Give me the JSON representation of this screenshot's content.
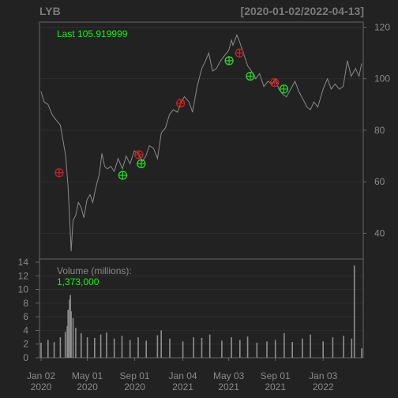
{
  "chart_data": [
    {
      "type": "line",
      "ticker": "LYB",
      "date_range": "[2020-01-02/2022-04-13]",
      "last_label": "Last 105.919999",
      "y_axis": {
        "side": "right",
        "ticks": [
          40,
          60,
          80,
          100,
          120
        ],
        "ylim": [
          30,
          122
        ]
      },
      "x_axis": {
        "range": [
          "2020-01-02",
          "2022-04-13"
        ],
        "ticks": [
          {
            "date": "2020-01-02",
            "line1": "Jan 02",
            "line2": "2020"
          },
          {
            "date": "2020-05-01",
            "line1": "May 01",
            "line2": "2020"
          },
          {
            "date": "2020-09-01",
            "line1": "Sep 01",
            "line2": "2020"
          },
          {
            "date": "2021-01-04",
            "line1": "Jan 04",
            "line2": "2021"
          },
          {
            "date": "2021-05-03",
            "line1": "May 03",
            "line2": "2021"
          },
          {
            "date": "2021-09-01",
            "line1": "Sep 01",
            "line2": "2021"
          },
          {
            "date": "2022-01-03",
            "line1": "Jan 03",
            "line2": "2022"
          }
        ]
      },
      "series": [
        {
          "values": [
            [
              "2020-01-02",
              95
            ],
            [
              "2020-01-10",
              91
            ],
            [
              "2020-01-20",
              90
            ],
            [
              "2020-01-31",
              86
            ],
            [
              "2020-02-10",
              84
            ],
            [
              "2020-02-21",
              82
            ],
            [
              "2020-02-28",
              76
            ],
            [
              "2020-03-06",
              70
            ],
            [
              "2020-03-12",
              58
            ],
            [
              "2020-03-18",
              40
            ],
            [
              "2020-03-20",
              33
            ],
            [
              "2020-03-25",
              45
            ],
            [
              "2020-04-01",
              47
            ],
            [
              "2020-04-08",
              52
            ],
            [
              "2020-04-15",
              50
            ],
            [
              "2020-04-22",
              46
            ],
            [
              "2020-04-30",
              53
            ],
            [
              "2020-05-08",
              55
            ],
            [
              "2020-05-15",
              52
            ],
            [
              "2020-05-22",
              57
            ],
            [
              "2020-06-01",
              63
            ],
            [
              "2020-06-08",
              71
            ],
            [
              "2020-06-15",
              66
            ],
            [
              "2020-06-22",
              65
            ],
            [
              "2020-07-01",
              66
            ],
            [
              "2020-07-10",
              64
            ],
            [
              "2020-07-20",
              69
            ],
            [
              "2020-07-31",
              65
            ],
            [
              "2020-08-10",
              70
            ],
            [
              "2020-08-20",
              67
            ],
            [
              "2020-08-31",
              72
            ],
            [
              "2020-09-10",
              71
            ],
            [
              "2020-09-21",
              68
            ],
            [
              "2020-09-30",
              70
            ],
            [
              "2020-10-09",
              74
            ],
            [
              "2020-10-20",
              73
            ],
            [
              "2020-10-30",
              69
            ],
            [
              "2020-11-09",
              79
            ],
            [
              "2020-11-20",
              81
            ],
            [
              "2020-11-30",
              86
            ],
            [
              "2020-12-10",
              88
            ],
            [
              "2020-12-21",
              87
            ],
            [
              "2020-12-31",
              91
            ],
            [
              "2021-01-08",
              93
            ],
            [
              "2021-01-20",
              91
            ],
            [
              "2021-01-29",
              87
            ],
            [
              "2021-02-10",
              97
            ],
            [
              "2021-02-22",
              104
            ],
            [
              "2021-03-01",
              106
            ],
            [
              "2021-03-12",
              110
            ],
            [
              "2021-03-22",
              103
            ],
            [
              "2021-04-01",
              104
            ],
            [
              "2021-04-12",
              107
            ],
            [
              "2021-04-22",
              109
            ],
            [
              "2021-05-03",
              111
            ],
            [
              "2021-05-10",
              115
            ],
            [
              "2021-05-14",
              113
            ],
            [
              "2021-05-24",
              117
            ],
            [
              "2021-06-01",
              114
            ],
            [
              "2021-06-10",
              110
            ],
            [
              "2021-06-21",
              105
            ],
            [
              "2021-07-01",
              103
            ],
            [
              "2021-07-12",
              100
            ],
            [
              "2021-07-22",
              102
            ],
            [
              "2021-08-02",
              97
            ],
            [
              "2021-08-13",
              99
            ],
            [
              "2021-08-24",
              98
            ],
            [
              "2021-09-01",
              100
            ],
            [
              "2021-09-10",
              96
            ],
            [
              "2021-09-20",
              94
            ],
            [
              "2021-09-30",
              93
            ],
            [
              "2021-10-11",
              96
            ],
            [
              "2021-10-22",
              99
            ],
            [
              "2021-11-01",
              95
            ],
            [
              "2021-11-12",
              92
            ],
            [
              "2021-11-22",
              89
            ],
            [
              "2021-12-01",
              88
            ],
            [
              "2021-12-10",
              91
            ],
            [
              "2021-12-20",
              89
            ],
            [
              "2022-01-03",
              96
            ],
            [
              "2022-01-14",
              100
            ],
            [
              "2022-01-24",
              96
            ],
            [
              "2022-02-03",
              98
            ],
            [
              "2022-02-14",
              96
            ],
            [
              "2022-02-24",
              97
            ],
            [
              "2022-03-07",
              107
            ],
            [
              "2022-03-17",
              101
            ],
            [
              "2022-03-28",
              104
            ],
            [
              "2022-04-06",
              101
            ],
            [
              "2022-04-13",
              105.92
            ]
          ]
        }
      ],
      "markers": {
        "sell": [
          [
            "2020-02-18",
            63.5
          ],
          [
            "2020-09-12",
            70.5
          ],
          [
            "2020-12-29",
            90.5
          ],
          [
            "2021-05-31",
            110
          ],
          [
            "2021-08-30",
            98.5
          ]
        ],
        "buy": [
          [
            "2020-08-01",
            62.5
          ],
          [
            "2020-09-18",
            67
          ],
          [
            "2021-05-04",
            107
          ],
          [
            "2021-06-28",
            101
          ],
          [
            "2021-09-23",
            96
          ]
        ]
      },
      "colors": {
        "background": "#222222",
        "panel_border": "#666666",
        "grid": "#303030",
        "price_line": "#8a8a8a",
        "axis_text": "#8a8a8a",
        "last_text": "#00ff00",
        "sell_marker": "#cc2222",
        "buy_marker": "#22dd22"
      }
    },
    {
      "type": "bar",
      "label": "Volume (millions):",
      "last_volume": "1,373,000",
      "y_axis": {
        "side": "left",
        "ticks": [
          0,
          2,
          4,
          6,
          8,
          10,
          12,
          14
        ],
        "ylim": [
          0,
          14
        ]
      },
      "series": [
        {
          "values": [
            [
              "2020-01-02",
              2.2
            ],
            [
              "2020-01-20",
              2.6
            ],
            [
              "2020-02-05",
              2.3
            ],
            [
              "2020-02-21",
              3.0
            ],
            [
              "2020-03-05",
              3.8
            ],
            [
              "2020-03-10",
              4.6
            ],
            [
              "2020-03-12",
              7.0
            ],
            [
              "2020-03-16",
              8.5
            ],
            [
              "2020-03-18",
              9.2
            ],
            [
              "2020-03-20",
              6.8
            ],
            [
              "2020-03-25",
              5.8
            ],
            [
              "2020-04-01",
              4.4
            ],
            [
              "2020-04-15",
              3.6
            ],
            [
              "2020-05-01",
              3.0
            ],
            [
              "2020-05-20",
              2.9
            ],
            [
              "2020-06-05",
              3.4
            ],
            [
              "2020-06-20",
              3.7
            ],
            [
              "2020-07-10",
              2.8
            ],
            [
              "2020-07-30",
              3.2
            ],
            [
              "2020-08-20",
              2.6
            ],
            [
              "2020-09-10",
              3.0
            ],
            [
              "2020-10-01",
              2.5
            ],
            [
              "2020-10-30",
              3.3
            ],
            [
              "2020-11-09",
              4.0
            ],
            [
              "2020-12-01",
              2.8
            ],
            [
              "2021-01-04",
              2.4
            ],
            [
              "2021-02-01",
              3.0
            ],
            [
              "2021-02-22",
              2.9
            ],
            [
              "2021-03-15",
              3.4
            ],
            [
              "2021-04-15",
              2.5
            ],
            [
              "2021-05-10",
              3.0
            ],
            [
              "2021-06-01",
              2.6
            ],
            [
              "2021-06-21",
              3.1
            ],
            [
              "2021-07-15",
              2.2
            ],
            [
              "2021-08-10",
              2.4
            ],
            [
              "2021-09-01",
              2.6
            ],
            [
              "2021-09-24",
              3.6
            ],
            [
              "2021-10-15",
              2.3
            ],
            [
              "2021-11-10",
              2.8
            ],
            [
              "2021-12-01",
              3.4
            ],
            [
              "2022-01-03",
              2.4
            ],
            [
              "2022-01-28",
              3.0
            ],
            [
              "2022-02-25",
              3.2
            ],
            [
              "2022-03-18",
              2.8
            ],
            [
              "2022-03-25",
              13.5
            ],
            [
              "2022-04-13",
              1.37
            ]
          ]
        }
      ],
      "colors": {
        "bar": "#8f8f8f",
        "label_text": "#8a8a8a",
        "value_text": "#00ff00"
      }
    }
  ]
}
